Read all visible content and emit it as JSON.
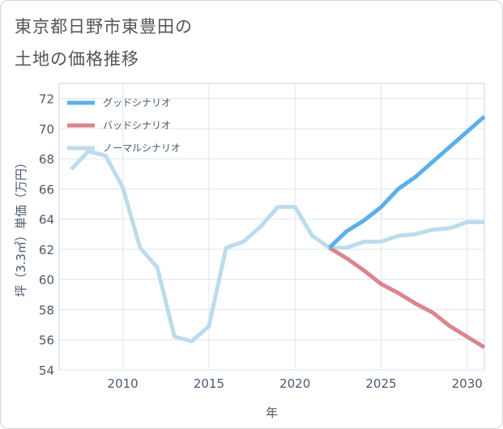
{
  "page": {
    "title_line1": "東京都日野市東豊田の",
    "title_line2": "土地の価格推移"
  },
  "chart_data": {
    "type": "line",
    "xlabel": "年",
    "ylabel": "坪（3.3㎡）単価（万円）",
    "xlim": [
      2006.3,
      2031
    ],
    "ylim": [
      54,
      73
    ],
    "xticks": [
      2010,
      2015,
      2020,
      2025,
      2030
    ],
    "yticks": [
      54,
      56,
      58,
      60,
      62,
      64,
      66,
      68,
      70,
      72
    ],
    "grid": true,
    "legend_position": "top-left",
    "series": [
      {
        "name": "グッドシナリオ",
        "color": "#5ab0ea",
        "x": [
          2022,
          2023,
          2024,
          2025,
          2026,
          2027,
          2028,
          2029,
          2030,
          2031
        ],
        "y": [
          62.1,
          63.2,
          63.9,
          64.8,
          66.0,
          66.8,
          67.8,
          68.8,
          69.8,
          70.8
        ]
      },
      {
        "name": "バッドシナリオ",
        "color": "#d9868f",
        "x": [
          2022,
          2023,
          2024,
          2025,
          2026,
          2027,
          2028,
          2029,
          2030,
          2031
        ],
        "y": [
          62.1,
          61.4,
          60.6,
          59.7,
          59.1,
          58.4,
          57.8,
          56.9,
          56.2,
          55.5
        ]
      },
      {
        "name": "ノーマルシナリオ",
        "color": "#bcdcec",
        "x": [
          2007,
          2008,
          2009,
          2010,
          2011,
          2012,
          2013,
          2014,
          2015,
          2016,
          2017,
          2018,
          2019,
          2020,
          2021,
          2022,
          2023,
          2024,
          2025,
          2026,
          2027,
          2028,
          2029,
          2030,
          2031
        ],
        "y": [
          67.3,
          68.5,
          68.2,
          66.1,
          62.1,
          60.8,
          56.2,
          55.9,
          56.9,
          62.1,
          62.5,
          63.5,
          64.8,
          64.8,
          62.9,
          62.1,
          62.1,
          62.5,
          62.5,
          62.9,
          63.0,
          63.3,
          63.4,
          63.8,
          63.8
        ]
      }
    ]
  }
}
